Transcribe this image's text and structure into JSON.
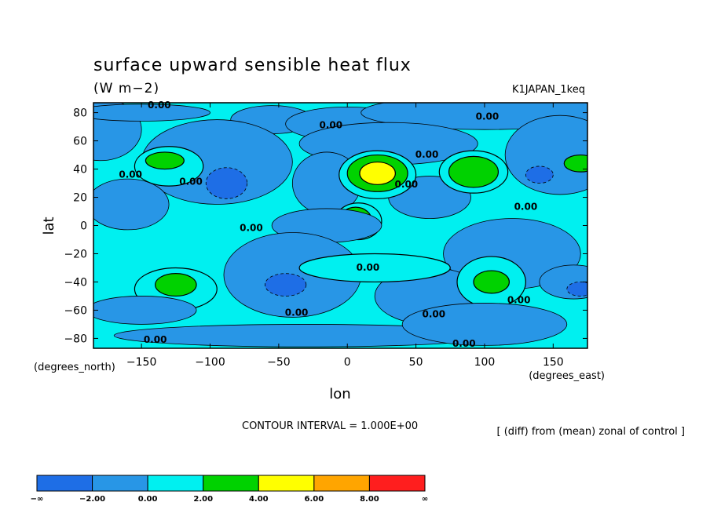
{
  "header": {
    "title": "surface upward sensible heat flux",
    "units": "(W m−2)",
    "experiment": "K1JAPAN_1keq"
  },
  "footer": {
    "contour_interval": "CONTOUR INTERVAL = 1.000E+00",
    "note": "[ (diff) from (mean) zonal of control ]"
  },
  "colors": {
    "below_m2": "#1e6ee6",
    "m2_0": "#2896e6",
    "0_2": "#00f0f0",
    "2_4": "#00d200",
    "4_6": "#ffff00",
    "6_8": "#ffa500",
    "above_8": "#ff1e1e"
  },
  "chart_data": {
    "type": "heatmap",
    "title": "surface upward sensible heat flux",
    "units": "(W m−2)",
    "xlabel": "lon",
    "ylabel": "lat",
    "x_unit_label": "(degrees_east)",
    "y_unit_label": "(degrees_north)",
    "xlim": [
      -185,
      175
    ],
    "ylim": [
      -87,
      87
    ],
    "x_ticks": [
      -150,
      -100,
      -50,
      0,
      50,
      100,
      150
    ],
    "x_tick_labels": [
      "−150",
      "−100",
      "−50",
      "0",
      "50",
      "100",
      "150"
    ],
    "y_ticks": [
      80,
      60,
      40,
      20,
      0,
      -20,
      -40,
      -60,
      -80
    ],
    "y_tick_labels": [
      "80",
      "60",
      "40",
      "20",
      "0",
      "−20",
      "−40",
      "−60",
      "−80"
    ],
    "contour_interval": 1.0,
    "background_level": 1.0,
    "colorbar": {
      "levels": [
        "−∞",
        "−2.00",
        "0.00",
        "2.00",
        "4.00",
        "6.00",
        "8.00",
        "∞"
      ],
      "bins": [
        {
          "range": "below -2",
          "color": "#1e6ee6"
        },
        {
          "range": "-2 to 0",
          "color": "#2896e6"
        },
        {
          "range": "0 to 2",
          "color": "#00f0f0"
        },
        {
          "range": "2 to 4",
          "color": "#00d200"
        },
        {
          "range": "4 to 6",
          "color": "#ffff00"
        },
        {
          "range": "6 to 8",
          "color": "#ffa500"
        },
        {
          "range": "above 8",
          "color": "#ff1e1e"
        }
      ]
    },
    "features": [
      {
        "lon": -180,
        "lat": 68,
        "rx": 30,
        "ry": 22,
        "value": -1
      },
      {
        "lon": -150,
        "lat": 80,
        "rx": 50,
        "ry": 6,
        "value": -1
      },
      {
        "lon": -55,
        "lat": 75,
        "rx": 30,
        "ry": 10,
        "value": -1
      },
      {
        "lon": 0,
        "lat": 72,
        "rx": 45,
        "ry": 12,
        "value": -1
      },
      {
        "lon": 100,
        "lat": 80,
        "rx": 90,
        "ry": 12,
        "value": -1
      },
      {
        "lon": -95,
        "lat": 45,
        "rx": 55,
        "ry": 30,
        "value": -1
      },
      {
        "lon": -88,
        "lat": 30,
        "rx": 15,
        "ry": 11,
        "value": -2.5
      },
      {
        "lon": -160,
        "lat": 15,
        "rx": 30,
        "ry": 18,
        "value": -1
      },
      {
        "lon": -130,
        "lat": 42,
        "rx": 25,
        "ry": 14,
        "value": 1
      },
      {
        "lon": -133,
        "lat": 46,
        "rx": 14,
        "ry": 6,
        "value": 3
      },
      {
        "lon": 30,
        "lat": 58,
        "rx": 65,
        "ry": 15,
        "value": -1
      },
      {
        "lon": 155,
        "lat": 50,
        "rx": 40,
        "ry": 28,
        "value": -1
      },
      {
        "lon": 170,
        "lat": 44,
        "rx": 12,
        "ry": 6,
        "value": 3
      },
      {
        "lon": 140,
        "lat": 36,
        "rx": 10,
        "ry": 6,
        "value": -2.5
      },
      {
        "lon": 60,
        "lat": 20,
        "rx": 30,
        "ry": 15,
        "value": -1
      },
      {
        "lon": -15,
        "lat": 30,
        "rx": 25,
        "ry": 22,
        "value": -1
      },
      {
        "lon": 22,
        "lat": 36,
        "rx": 28,
        "ry": 17,
        "value": 1
      },
      {
        "lon": 22,
        "lat": 37,
        "rx": 22,
        "ry": 13,
        "value": 3
      },
      {
        "lon": 22,
        "lat": 37,
        "rx": 13,
        "ry": 8,
        "value": 4.5
      },
      {
        "lon": 92,
        "lat": 38,
        "rx": 25,
        "ry": 15,
        "value": 1
      },
      {
        "lon": 92,
        "lat": 38,
        "rx": 18,
        "ry": 11,
        "value": 3
      },
      {
        "lon": 8,
        "lat": 3,
        "rx": 17,
        "ry": 13,
        "value": 1
      },
      {
        "lon": 6,
        "lat": 3,
        "rx": 12,
        "ry": 10,
        "value": 3
      },
      {
        "lon": -15,
        "lat": 0,
        "rx": 40,
        "ry": 12,
        "value": -1
      },
      {
        "lon": 120,
        "lat": -20,
        "rx": 50,
        "ry": 25,
        "value": -1
      },
      {
        "lon": -40,
        "lat": -35,
        "rx": 50,
        "ry": 30,
        "value": -1
      },
      {
        "lon": -45,
        "lat": -42,
        "rx": 15,
        "ry": 8,
        "value": -2.5
      },
      {
        "lon": -125,
        "lat": -45,
        "rx": 30,
        "ry": 15,
        "value": 1
      },
      {
        "lon": -125,
        "lat": -42,
        "rx": 15,
        "ry": 8,
        "value": 3
      },
      {
        "lon": 60,
        "lat": -50,
        "rx": 40,
        "ry": 20,
        "value": -1
      },
      {
        "lon": 20,
        "lat": -30,
        "rx": 55,
        "ry": 10,
        "value": 1
      },
      {
        "lon": 105,
        "lat": -40,
        "rx": 25,
        "ry": 18,
        "value": 1
      },
      {
        "lon": 105,
        "lat": -40,
        "rx": 13,
        "ry": 8,
        "value": 3
      },
      {
        "lon": 165,
        "lat": -40,
        "rx": 25,
        "ry": 12,
        "value": -1
      },
      {
        "lon": 170,
        "lat": -45,
        "rx": 10,
        "ry": 5,
        "value": -2.5
      },
      {
        "lon": -150,
        "lat": -60,
        "rx": 40,
        "ry": 10,
        "value": -1
      },
      {
        "lon": -30,
        "lat": -78,
        "rx": 140,
        "ry": 8,
        "value": -1
      },
      {
        "lon": 100,
        "lat": -70,
        "rx": 60,
        "ry": 15,
        "value": -1
      }
    ],
    "contour_labels": [
      {
        "lon": -137,
        "lat": 83,
        "text": "0.00"
      },
      {
        "lon": -12,
        "lat": 69,
        "text": "0.00"
      },
      {
        "lon": 102,
        "lat": 75,
        "text": "0.00"
      },
      {
        "lon": 58,
        "lat": 48,
        "text": "0.00"
      },
      {
        "lon": -158,
        "lat": 34,
        "text": "0.00"
      },
      {
        "lon": -114,
        "lat": 29,
        "text": "0.00"
      },
      {
        "lon": 43,
        "lat": 27,
        "text": "0.00"
      },
      {
        "lon": 130,
        "lat": 11,
        "text": "0.00"
      },
      {
        "lon": -70,
        "lat": -4,
        "text": "0.00"
      },
      {
        "lon": 15,
        "lat": -32,
        "text": "0.00"
      },
      {
        "lon": -37,
        "lat": -64,
        "text": "0.00"
      },
      {
        "lon": 63,
        "lat": -65,
        "text": "0.00"
      },
      {
        "lon": 125,
        "lat": -55,
        "text": "0.00"
      },
      {
        "lon": -140,
        "lat": -83,
        "text": "0.00"
      },
      {
        "lon": 85,
        "lat": -86,
        "text": "0.00"
      }
    ]
  }
}
